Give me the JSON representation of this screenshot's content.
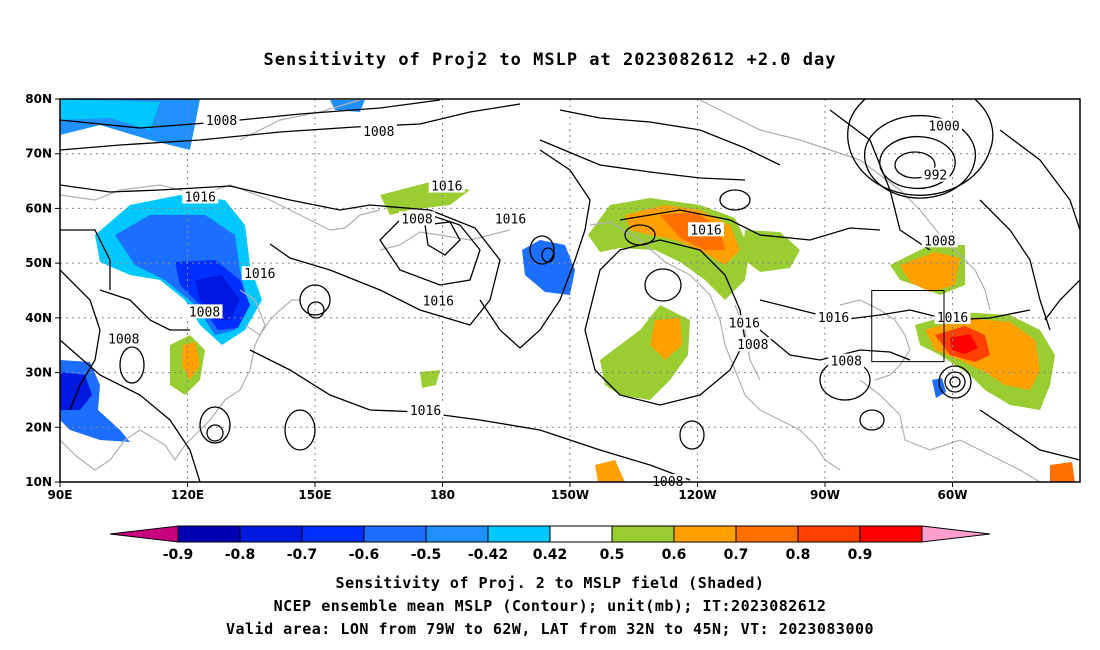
{
  "title": "Sensitivity of Proj2 to MSLP at 2023082612 +2.0 day",
  "axes": {
    "lon_labels": [
      "90E",
      "120E",
      "150E",
      "180",
      "150W",
      "120W",
      "90W",
      "60W"
    ],
    "lat_labels": [
      "80N",
      "70N",
      "60N",
      "50N",
      "40N",
      "30N",
      "20N",
      "10N"
    ],
    "lon_range": [
      90,
      330
    ],
    "lat_range": [
      10,
      80
    ],
    "grid": "dotted"
  },
  "contour_labels": [
    {
      "text": "1008",
      "lon": 165,
      "lat": 74
    },
    {
      "text": "1008",
      "lon": 128,
      "lat": 76
    },
    {
      "text": "1000",
      "lon": 298,
      "lat": 75
    },
    {
      "text": "992",
      "lon": 296,
      "lat": 66
    },
    {
      "text": "1016",
      "lon": 123,
      "lat": 62
    },
    {
      "text": "1016",
      "lon": 181,
      "lat": 64
    },
    {
      "text": "1016",
      "lon": 196,
      "lat": 58
    },
    {
      "text": "1008",
      "lon": 174,
      "lat": 58
    },
    {
      "text": "1016",
      "lon": 137,
      "lat": 48
    },
    {
      "text": "1016",
      "lon": 179,
      "lat": 43
    },
    {
      "text": "1008",
      "lon": 124,
      "lat": 41
    },
    {
      "text": "1008",
      "lon": 105,
      "lat": 36
    },
    {
      "text": "1016",
      "lon": 242,
      "lat": 56
    },
    {
      "text": "1008",
      "lon": 297,
      "lat": 54
    },
    {
      "text": "1016",
      "lon": 251,
      "lat": 39
    },
    {
      "text": "1016",
      "lon": 272,
      "lat": 40
    },
    {
      "text": "1016",
      "lon": 300,
      "lat": 40
    },
    {
      "text": "1008",
      "lon": 253,
      "lat": 35
    },
    {
      "text": "1008",
      "lon": 275,
      "lat": 32
    },
    {
      "text": "1016",
      "lon": 176,
      "lat": 23
    },
    {
      "text": "1008",
      "lon": 233,
      "lat": 10
    }
  ],
  "valid_area": {
    "lon_min": 281,
    "lon_max": 298,
    "lat_min": 32,
    "lat_max": 45
  },
  "colorbar": {
    "ticks": [
      "-0.9",
      "-0.8",
      "-0.7",
      "-0.6",
      "-0.5",
      "-0.42",
      "0.42",
      "0.5",
      "0.6",
      "0.7",
      "0.8",
      "0.9"
    ],
    "colors": [
      "#c8007d",
      "#0000b4",
      "#0018e0",
      "#0030ff",
      "#1c6eff",
      "#2090ff",
      "#00c8ff",
      "#ffffff",
      "#9acd32",
      "#ffa000",
      "#ff7000",
      "#ff4000",
      "#ff0000",
      "#ff9fcf"
    ]
  },
  "captions": [
    "Sensitivity of Proj. 2 to MSLP field (Shaded)",
    "NCEP ensemble mean MSLP (Contour); unit(mb); IT:2023082612",
    "Valid area: LON from 79W to 62W, LAT from 32N to 45N; VT: 2023083000"
  ]
}
